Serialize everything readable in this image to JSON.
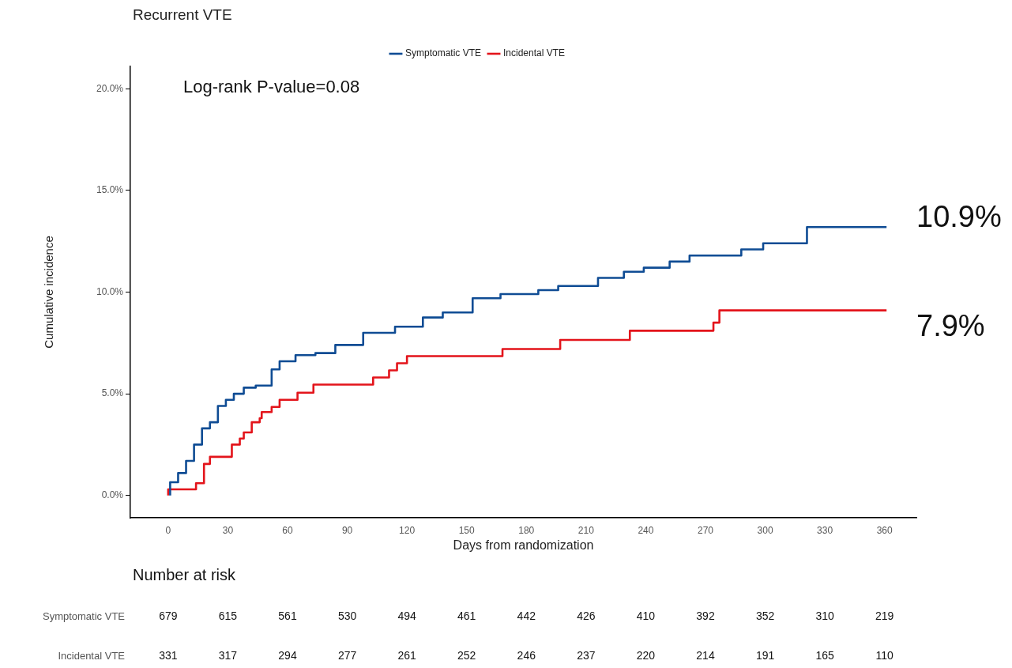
{
  "chart_data": {
    "type": "step",
    "title": "Recurrent VTE",
    "xlabel": "Days from randomization",
    "ylabel": "Cumulative incidence",
    "xlim": [
      -19,
      376
    ],
    "xticks": [
      0,
      30,
      60,
      90,
      120,
      150,
      180,
      210,
      240,
      270,
      300,
      330,
      360
    ],
    "ylim": [
      -1.1,
      21.1
    ],
    "yticks": [
      {
        "value": 0,
        "label": "0.0%"
      },
      {
        "value": 5,
        "label": "5.0%"
      },
      {
        "value": 10,
        "label": "10.0%"
      },
      {
        "value": 15,
        "label": "15.0%"
      },
      {
        "value": 20,
        "label": "20.0%"
      }
    ],
    "grid": false,
    "legend": "top",
    "marker": "none",
    "line_style": "solid",
    "series": [
      {
        "name": "Symptomatic VTE",
        "color": "#0f4c94",
        "x": [
          1,
          5,
          9,
          13,
          17,
          21,
          25,
          29,
          33,
          38,
          44,
          52,
          56,
          64,
          74,
          84,
          98,
          114,
          128,
          138,
          153,
          167,
          186,
          196,
          216,
          229,
          239,
          252,
          262,
          288,
          299,
          321,
          325,
          361
        ],
        "values": [
          0,
          0.65,
          1.1,
          1.7,
          2.5,
          3.3,
          3.6,
          4.4,
          4.7,
          5.0,
          5.3,
          5.4,
          6.2,
          6.6,
          6.9,
          7.0,
          7.4,
          8.0,
          8.3,
          8.75,
          9.0,
          9.7,
          9.9,
          10.1,
          10.3,
          10.7,
          11.0,
          11.2,
          11.5,
          11.8,
          12.1,
          12.4,
          13.2,
          13.2
        ]
      },
      {
        "name": "Incidental VTE",
        "color": "#e3141b",
        "x": [
          0,
          14,
          18,
          21,
          32,
          36,
          38,
          42,
          46,
          47,
          52,
          56,
          65,
          73,
          103,
          111,
          115,
          120,
          168,
          197,
          232,
          274,
          277,
          348,
          361
        ],
        "values": [
          0,
          0.3,
          0.6,
          1.55,
          1.9,
          2.5,
          2.8,
          3.1,
          3.6,
          3.8,
          4.1,
          4.35,
          4.7,
          5.05,
          5.45,
          5.8,
          6.15,
          6.5,
          6.85,
          7.2,
          7.65,
          8.1,
          8.5,
          9.1,
          9.1
        ]
      }
    ],
    "annotations": [
      "Log-rank P-value=0.08",
      "10.9%",
      "7.9%",
      "Number at risk",
      "Symptomatic VTE",
      "679",
      "615",
      "561",
      "530",
      "494",
      "461",
      "442",
      "426",
      "410",
      "392",
      "352",
      "310",
      "219",
      "Incidental VTE",
      "331",
      "317",
      "294",
      "277",
      "261",
      "252",
      "246",
      "237",
      "220",
      "214",
      "191",
      "165",
      "110"
    ]
  }
}
